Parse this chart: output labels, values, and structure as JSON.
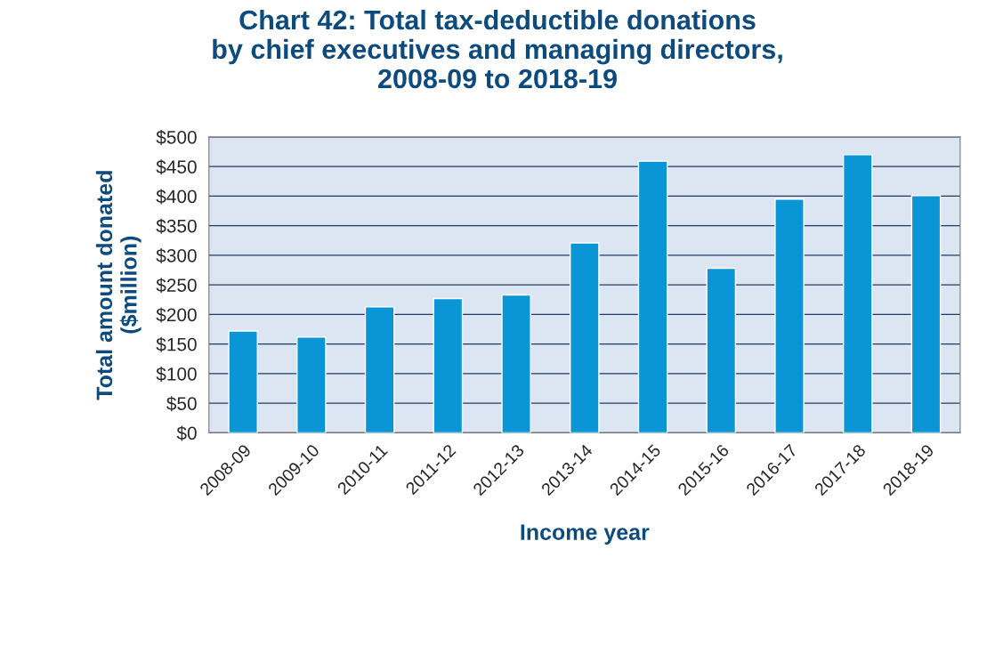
{
  "chart_data": {
    "type": "bar",
    "title": "Chart 42: Total tax-deductible donations\nby chief executives and managing directors,\n2008-09 to 2018-19",
    "xlabel": "Income year",
    "ylabel": "Total amount donated\n($million)",
    "categories": [
      "2008-09",
      "2009-10",
      "2010-11",
      "2011-12",
      "2012-13",
      "2013-14",
      "2014-15",
      "2015-16",
      "2016-17",
      "2017-18",
      "2018-19"
    ],
    "values": [
      172,
      162,
      213,
      227,
      233,
      321,
      459,
      278,
      395,
      470,
      401
    ],
    "color": "#0a96d6",
    "ylim": [
      0,
      500
    ],
    "yticks": [
      {
        "value": 0,
        "label": "$0"
      },
      {
        "value": 50,
        "label": "$50"
      },
      {
        "value": 100,
        "label": "$100"
      },
      {
        "value": 150,
        "label": "$150"
      },
      {
        "value": 200,
        "label": "$200"
      },
      {
        "value": 250,
        "label": "$250"
      },
      {
        "value": 300,
        "label": "$300"
      },
      {
        "value": 350,
        "label": "$350"
      },
      {
        "value": 400,
        "label": "$400"
      },
      {
        "value": 450,
        "label": "$450"
      },
      {
        "value": 500,
        "label": "$500"
      }
    ],
    "grid": "y"
  }
}
